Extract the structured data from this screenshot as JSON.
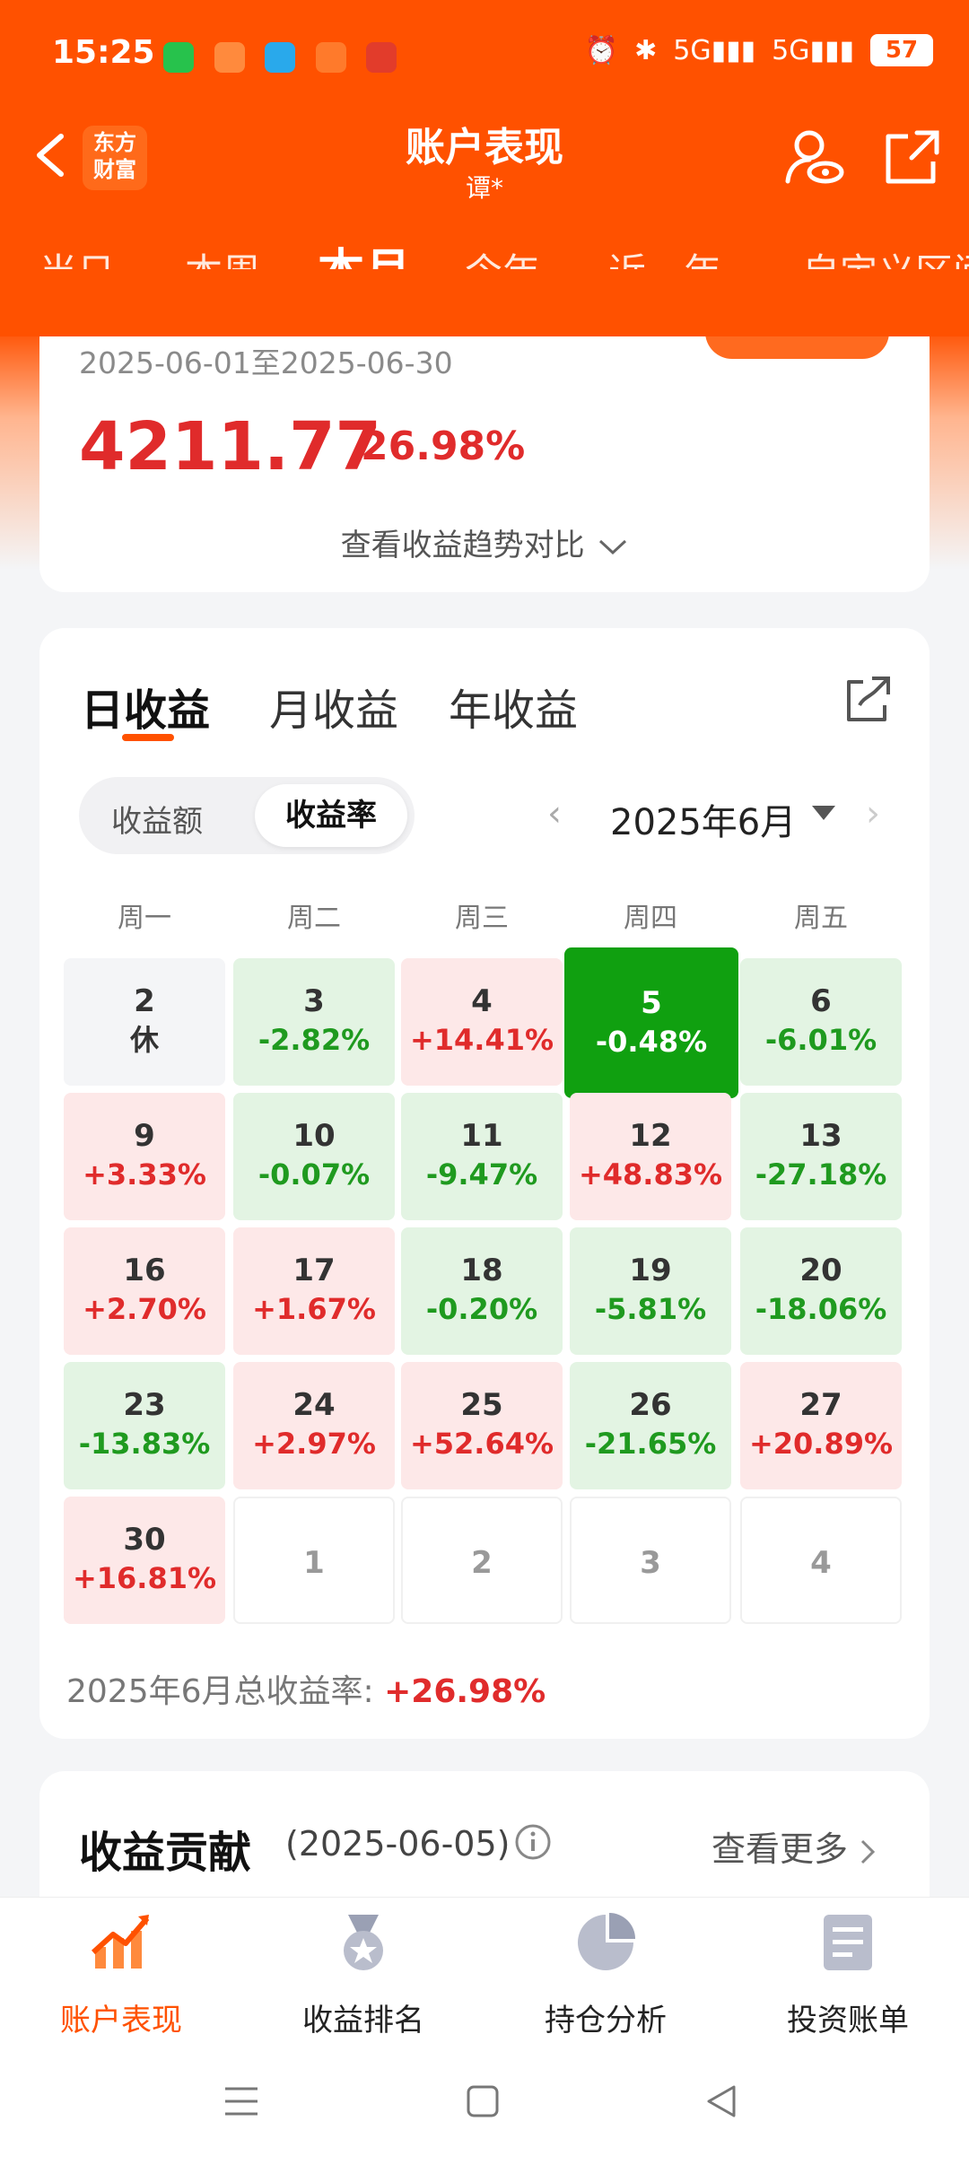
{
  "status_bar": {
    "time": "15:25",
    "network": "5G",
    "battery": "57"
  },
  "header": {
    "logo_text": "东方财富",
    "title": "账户表现",
    "subtitle": "谭*"
  },
  "tabs": [
    "当日",
    "本周",
    "本月",
    "今年",
    "近一年",
    "自定义区间"
  ],
  "summary": {
    "date_range": "2025-06-01至2025-06-30",
    "value": "4211.77",
    "rate": "26.98%",
    "trend_link": "查看收益趋势对比"
  },
  "calendar": {
    "seg_tabs": [
      "日收益",
      "月收益",
      "年收益"
    ],
    "toggle": [
      "收益额",
      "收益率"
    ],
    "month": "2025年6月",
    "weekdays": [
      "周一",
      "周二",
      "周三",
      "周四",
      "周五"
    ],
    "cells": [
      {
        "day": "2",
        "val": "休",
        "type": "rest"
      },
      {
        "day": "3",
        "val": "-2.82%",
        "type": "down"
      },
      {
        "day": "4",
        "val": "+14.41%",
        "type": "up"
      },
      {
        "day": "5",
        "val": "-0.48%",
        "type": "sel"
      },
      {
        "day": "6",
        "val": "-6.01%",
        "type": "down"
      },
      {
        "day": "9",
        "val": "+3.33%",
        "type": "up"
      },
      {
        "day": "10",
        "val": "-0.07%",
        "type": "down"
      },
      {
        "day": "11",
        "val": "-9.47%",
        "type": "down"
      },
      {
        "day": "12",
        "val": "+48.83%",
        "type": "up"
      },
      {
        "day": "13",
        "val": "-27.18%",
        "type": "down"
      },
      {
        "day": "16",
        "val": "+2.70%",
        "type": "up"
      },
      {
        "day": "17",
        "val": "+1.67%",
        "type": "up"
      },
      {
        "day": "18",
        "val": "-0.20%",
        "type": "down"
      },
      {
        "day": "19",
        "val": "-5.81%",
        "type": "down"
      },
      {
        "day": "20",
        "val": "-18.06%",
        "type": "down"
      },
      {
        "day": "23",
        "val": "-13.83%",
        "type": "down"
      },
      {
        "day": "24",
        "val": "+2.97%",
        "type": "up"
      },
      {
        "day": "25",
        "val": "+52.64%",
        "type": "up"
      },
      {
        "day": "26",
        "val": "-21.65%",
        "type": "down"
      },
      {
        "day": "27",
        "val": "+20.89%",
        "type": "up"
      },
      {
        "day": "30",
        "val": "+16.81%",
        "type": "up"
      },
      {
        "day": "1",
        "val": "",
        "type": "empty"
      },
      {
        "day": "2",
        "val": "",
        "type": "empty"
      },
      {
        "day": "3",
        "val": "",
        "type": "empty"
      },
      {
        "day": "4",
        "val": "",
        "type": "empty"
      }
    ],
    "total_label": "2025年6月总收益率:",
    "total_value": "+26.98%"
  },
  "contribution": {
    "title": "收益贡献",
    "date": "(2025-06-05)",
    "more": "查看更多"
  },
  "bottom_nav": [
    {
      "label": "账户表现",
      "icon": "chart-up-icon",
      "active": true
    },
    {
      "label": "收益排名",
      "icon": "medal-icon",
      "active": false
    },
    {
      "label": "持仓分析",
      "icon": "pie-icon",
      "active": false
    },
    {
      "label": "投资账单",
      "icon": "bill-icon",
      "active": false
    }
  ],
  "colors": {
    "brand": "#ff5100",
    "up": "#e02b2b",
    "down": "#1f9a1f",
    "selected": "#10a010"
  }
}
